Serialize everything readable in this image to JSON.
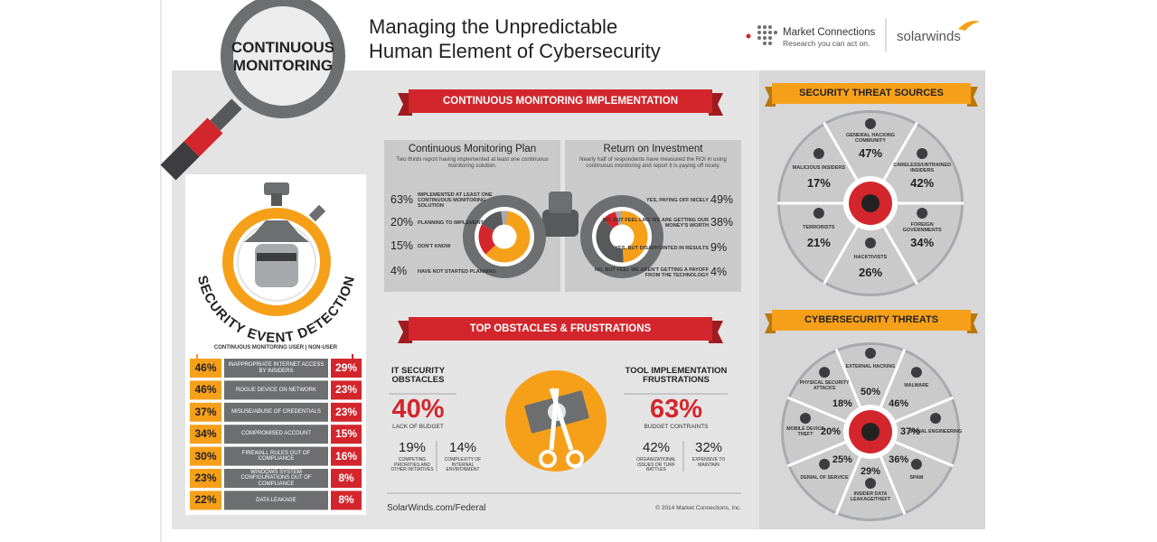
{
  "header": {
    "badge_lines": [
      "CONTINUOUS",
      "MONITORING"
    ],
    "title_lines": [
      "Managing the Unpredictable",
      "Human Element of Cybersecurity"
    ],
    "logo_name": "Market Connections",
    "logo_tagline": "Research you can act on.",
    "partner": "solarwinds"
  },
  "detection": {
    "title": "SECURITY EVENT DETECTION",
    "legend": "CONTINUOUS MONITORING USER | NON-USER",
    "rows": [
      {
        "user": "46%",
        "label": "INAPPROPRIATE INTERNET ACCESS BY INSIDERS",
        "nonuser": "29%"
      },
      {
        "user": "46%",
        "label": "ROGUE DEVICE ON NETWORK",
        "nonuser": "23%"
      },
      {
        "user": "37%",
        "label": "MISUSE/ABUSE OF CREDENTIALS",
        "nonuser": "23%"
      },
      {
        "user": "34%",
        "label": "COMPROMISED ACCOUNT",
        "nonuser": "15%"
      },
      {
        "user": "30%",
        "label": "FIREWALL RULES OUT OF COMPLIANCE",
        "nonuser": "16%"
      },
      {
        "user": "23%",
        "label": "WINDOWS SYSTEM CONFIGURATIONS OUT OF COMPLIANCE",
        "nonuser": "8%"
      },
      {
        "user": "22%",
        "label": "DATA LEAKAGE",
        "nonuser": "8%"
      }
    ]
  },
  "implementation": {
    "title": "CONTINUOUS MONITORING IMPLEMENTATION",
    "plan": {
      "title": "Continuous Monitoring Plan",
      "note": "Two thirds report having implemented at least one continuous monitoring solution.",
      "items": [
        {
          "value": 63,
          "label": "63%",
          "text": "IMPLEMENTED AT LEAST ONE CONTINUOUS MONITORING SOLUTION",
          "color": "#f6a01a"
        },
        {
          "value": 20,
          "label": "20%",
          "text": "PLANNING TO IMPLEMENT",
          "color": "#d3262c"
        },
        {
          "value": 15,
          "label": "15%",
          "text": "DON'T KNOW",
          "color": "#58595b"
        },
        {
          "value": 4,
          "label": "4%",
          "text": "HAVE NOT STARTED PLANNING",
          "color": "#a7a9ac"
        }
      ]
    },
    "roi": {
      "title": "Return on Investment",
      "note": "Nearly half of respondents have measured the ROI in using continuous monitoring and report it is paying off nicely.",
      "items": [
        {
          "value": 49,
          "label": "49%",
          "text": "YES, PAYING OFF NICELY",
          "color": "#f6a01a"
        },
        {
          "value": 38,
          "label": "38%",
          "text": "NO, BUT FEEL LIKE WE ARE GETTING OUR MONEY'S WORTH",
          "color": "#58595b"
        },
        {
          "value": 9,
          "label": "9%",
          "text": "YES, BUT DISAPPOINTED IN RESULTS",
          "color": "#d3262c"
        },
        {
          "value": 4,
          "label": "4%",
          "text": "NO, BUT FEEL WE AREN'T GETTING A PAYOFF FROM THE TECHNOLOGY",
          "color": "#a7a9ac"
        }
      ]
    }
  },
  "obstacles": {
    "title": "TOP OBSTACLES & FRUSTRATIONS",
    "it": {
      "title": "IT SECURITY OBSTACLES",
      "main": "40%",
      "main_text": "LACK OF BUDGET",
      "subs": [
        {
          "value": "19%",
          "text": "COMPETING PRIORITIES AND OTHER INITIATIVES"
        },
        {
          "value": "14%",
          "text": "COMPLEXITY OF INTERNAL ENVIRONMENT"
        }
      ]
    },
    "tool": {
      "title": "TOOL IMPLEMENTATION FRUSTRATIONS",
      "main": "63%",
      "main_text": "BUDGET CONTRAINTS",
      "subs": [
        {
          "value": "42%",
          "text": "ORGANIZATIONAL ISSUES OR TURF BATTLES"
        },
        {
          "value": "32%",
          "text": "EXPENSIVE TO MAINTAIN"
        }
      ]
    }
  },
  "footer": {
    "url": "SolarWinds.com/Federal",
    "copyright": "© 2014 Market Connections, Inc."
  },
  "threat_sources": {
    "title": "SECURITY THREAT SOURCES",
    "items": [
      {
        "label": "GENERAL HACKING COMMUNITY",
        "value": "47%"
      },
      {
        "label": "CARELESS/UNTRAINED INSIDERS",
        "value": "42%"
      },
      {
        "label": "FOREIGN GOVERNMENTS",
        "value": "34%"
      },
      {
        "label": "HACKTIVISTS",
        "value": "26%"
      },
      {
        "label": "TERRORISTS",
        "value": "21%"
      },
      {
        "label": "MALICIOUS INSIDERS",
        "value": "17%"
      }
    ]
  },
  "threats": {
    "title": "CYBERSECURITY THREATS",
    "items": [
      {
        "label": "EXTERNAL HACKING",
        "value": "50%"
      },
      {
        "label": "MALWARE",
        "value": "46%"
      },
      {
        "label": "SOCIAL ENGINEERING",
        "value": "37%"
      },
      {
        "label": "SPAM",
        "value": "36%"
      },
      {
        "label": "INSIDER DATA LEAKAGE/THEFT",
        "value": "29%"
      },
      {
        "label": "DENIAL OF SERVICE",
        "value": "25%"
      },
      {
        "label": "MOBILE DEVICE THEFT",
        "value": "20%"
      },
      {
        "label": "PHYSICAL SECURITY ATTACKS",
        "value": "18%"
      }
    ]
  }
}
